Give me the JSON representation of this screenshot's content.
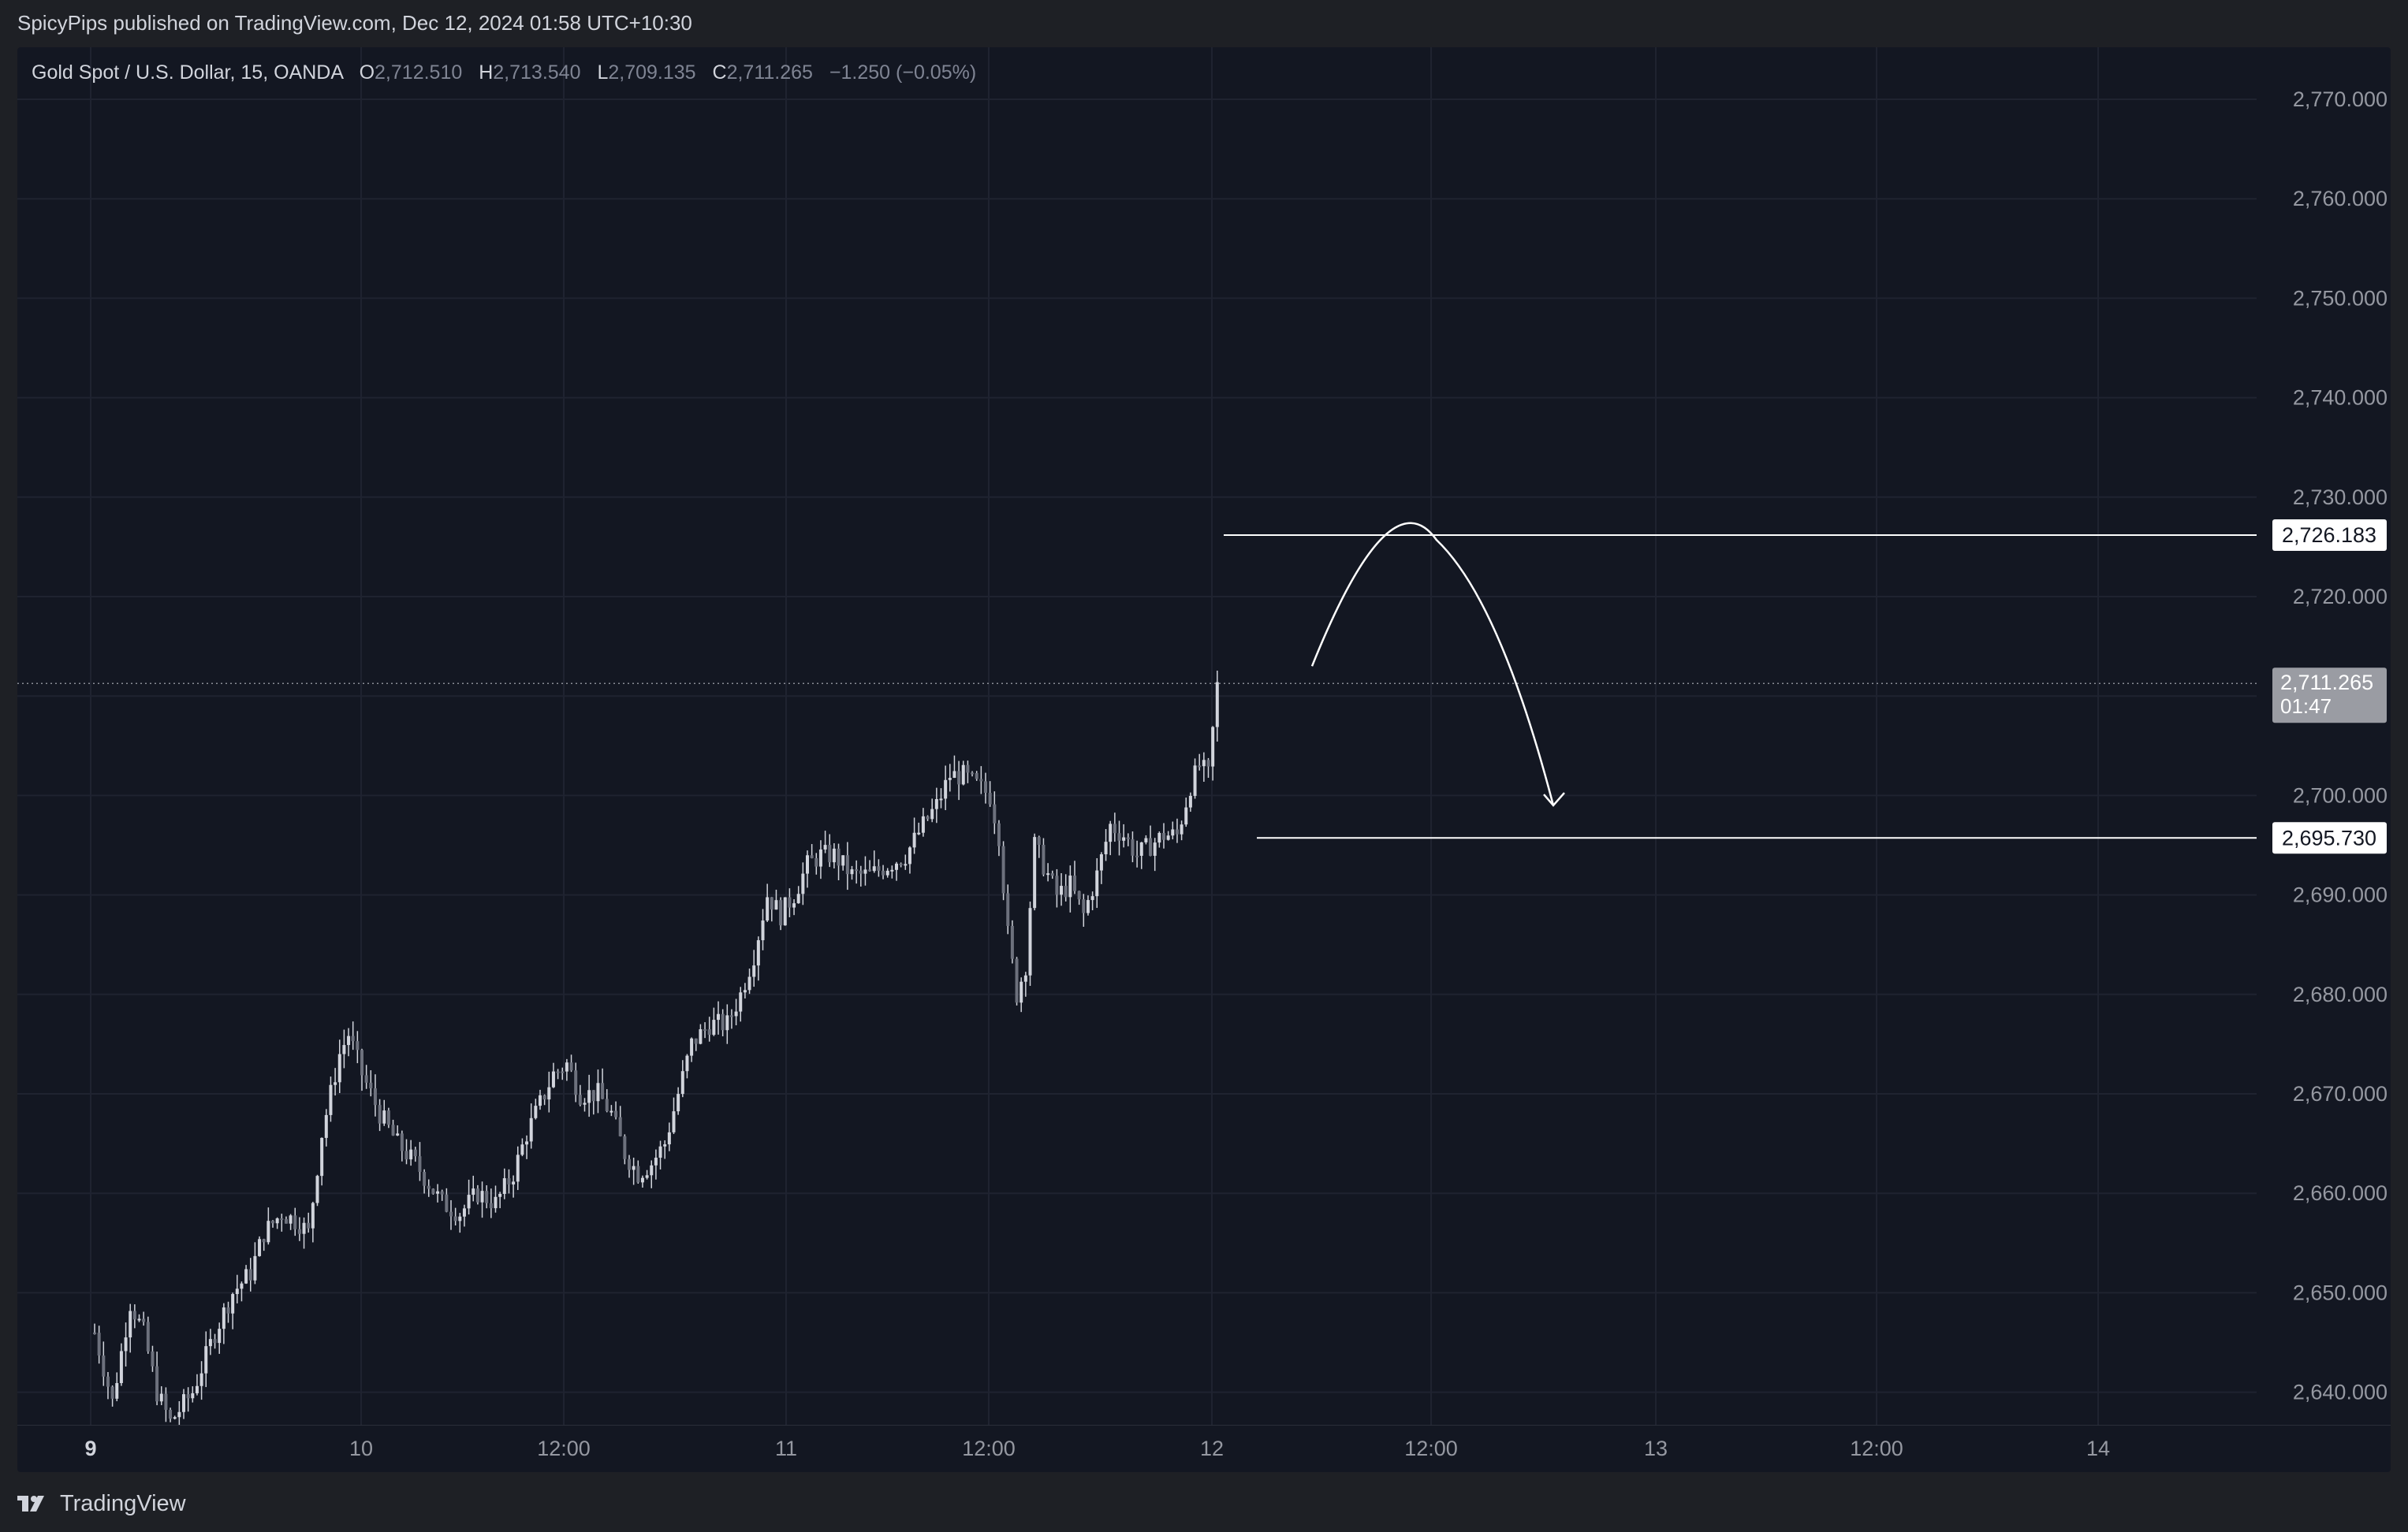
{
  "header": {
    "published_text": "SpicyPips published on TradingView.com, Dec 12, 2024 01:58 UTC+10:30"
  },
  "legend": {
    "symbol": "Gold Spot / U.S. Dollar, 15, OANDA",
    "open_label": "O",
    "open": "2,712.510",
    "high_label": "H",
    "high": "2,713.540",
    "low_label": "L",
    "low": "2,709.135",
    "close_label": "C",
    "close": "2,711.265",
    "change": "−1.250 (−0.05%)"
  },
  "footer": {
    "brand": "TradingView"
  },
  "colors": {
    "background": "#131722",
    "grid": "#1f2330",
    "candle": "#d1d4dc",
    "axis_text": "#9598a1",
    "drawing": "#ffffff",
    "current_price_label": "#9a9ca3"
  },
  "chart_data": {
    "type": "candlestick",
    "symbol": "XAUUSD",
    "interval": "15",
    "ylim": [
      2638,
      2776
    ],
    "y_ticks": [
      2770,
      2760,
      2750,
      2740,
      2730,
      2720,
      2710,
      2700,
      2690,
      2680,
      2670,
      2660,
      2650,
      2640
    ],
    "y_tick_labels": [
      "2,770.000",
      "2,760.000",
      "2,750.000",
      "2,740.000",
      "2,730.000",
      "2,720.000",
      "2,710.000",
      "2,700.000",
      "2,690.000",
      "2,680.000",
      "2,670.000",
      "2,660.000",
      "2,650.000",
      "2,640.000"
    ],
    "x_labels": [
      "9",
      "10",
      "12:00",
      "11",
      "12:00",
      "12",
      "12:00",
      "13",
      "12:00",
      "14"
    ],
    "x_label_bold": [
      true,
      false,
      false,
      false,
      false,
      false,
      false,
      false,
      false,
      false
    ],
    "close_path": [
      [
        0,
        2646
      ],
      [
        4,
        2639
      ],
      [
        8,
        2649
      ],
      [
        11,
        2646
      ],
      [
        14,
        2640
      ],
      [
        17,
        2637
      ],
      [
        22,
        2640
      ],
      [
        27,
        2646
      ],
      [
        31,
        2650
      ],
      [
        35,
        2652
      ],
      [
        38,
        2656
      ],
      [
        42,
        2658
      ],
      [
        46,
        2657
      ],
      [
        48,
        2656
      ],
      [
        51,
        2666
      ],
      [
        55,
        2674
      ],
      [
        57,
        2676
      ],
      [
        60,
        2672
      ],
      [
        64,
        2668
      ],
      [
        68,
        2665
      ],
      [
        72,
        2663
      ],
      [
        75,
        2661
      ],
      [
        78,
        2659
      ],
      [
        82,
        2658
      ],
      [
        86,
        2660
      ],
      [
        90,
        2659
      ],
      [
        94,
        2662
      ],
      [
        97,
        2666
      ],
      [
        100,
        2669
      ],
      [
        103,
        2672
      ],
      [
        106,
        2673
      ],
      [
        109,
        2670
      ],
      [
        113,
        2670
      ],
      [
        116,
        2668
      ],
      [
        119,
        2664
      ],
      [
        122,
        2662
      ],
      [
        125,
        2663
      ],
      [
        128,
        2665
      ],
      [
        131,
        2670
      ],
      [
        134,
        2675
      ],
      [
        138,
        2677
      ],
      [
        142,
        2677
      ],
      [
        145,
        2680
      ],
      [
        148,
        2684
      ],
      [
        151,
        2690
      ],
      [
        154,
        2688
      ],
      [
        157,
        2690
      ],
      [
        160,
        2693
      ],
      [
        163,
        2694
      ],
      [
        166,
        2694
      ],
      [
        170,
        2692
      ],
      [
        174,
        2692
      ],
      [
        178,
        2693
      ],
      [
        182,
        2694
      ],
      [
        186,
        2697
      ],
      [
        189,
        2699
      ],
      [
        192,
        2702
      ],
      [
        195,
        2702
      ],
      [
        198,
        2701
      ],
      [
        201,
        2700
      ],
      [
        203,
        2696
      ],
      [
        205,
        2686
      ],
      [
        207,
        2680
      ],
      [
        209,
        2683
      ],
      [
        211,
        2695
      ],
      [
        213,
        2693
      ],
      [
        216,
        2690
      ],
      [
        219,
        2691
      ],
      [
        222,
        2688
      ],
      [
        225,
        2692
      ],
      [
        228,
        2697
      ],
      [
        231,
        2696
      ],
      [
        234,
        2694
      ],
      [
        237,
        2695
      ],
      [
        240,
        2696
      ],
      [
        243,
        2696
      ],
      [
        246,
        2701
      ],
      [
        248,
        2703
      ],
      [
        250,
        2702
      ],
      [
        252,
        2711
      ]
    ],
    "annotations": {
      "resistance": {
        "price": 2726.183,
        "label": "2,726.183"
      },
      "support": {
        "price": 2695.73,
        "label": "2,695.730"
      },
      "current_price": {
        "price": 2711.265,
        "label": "2,711.265",
        "countdown": "01:47"
      },
      "projection_arrow": {
        "description": "curved arrow up to resistance then down to support"
      }
    }
  }
}
